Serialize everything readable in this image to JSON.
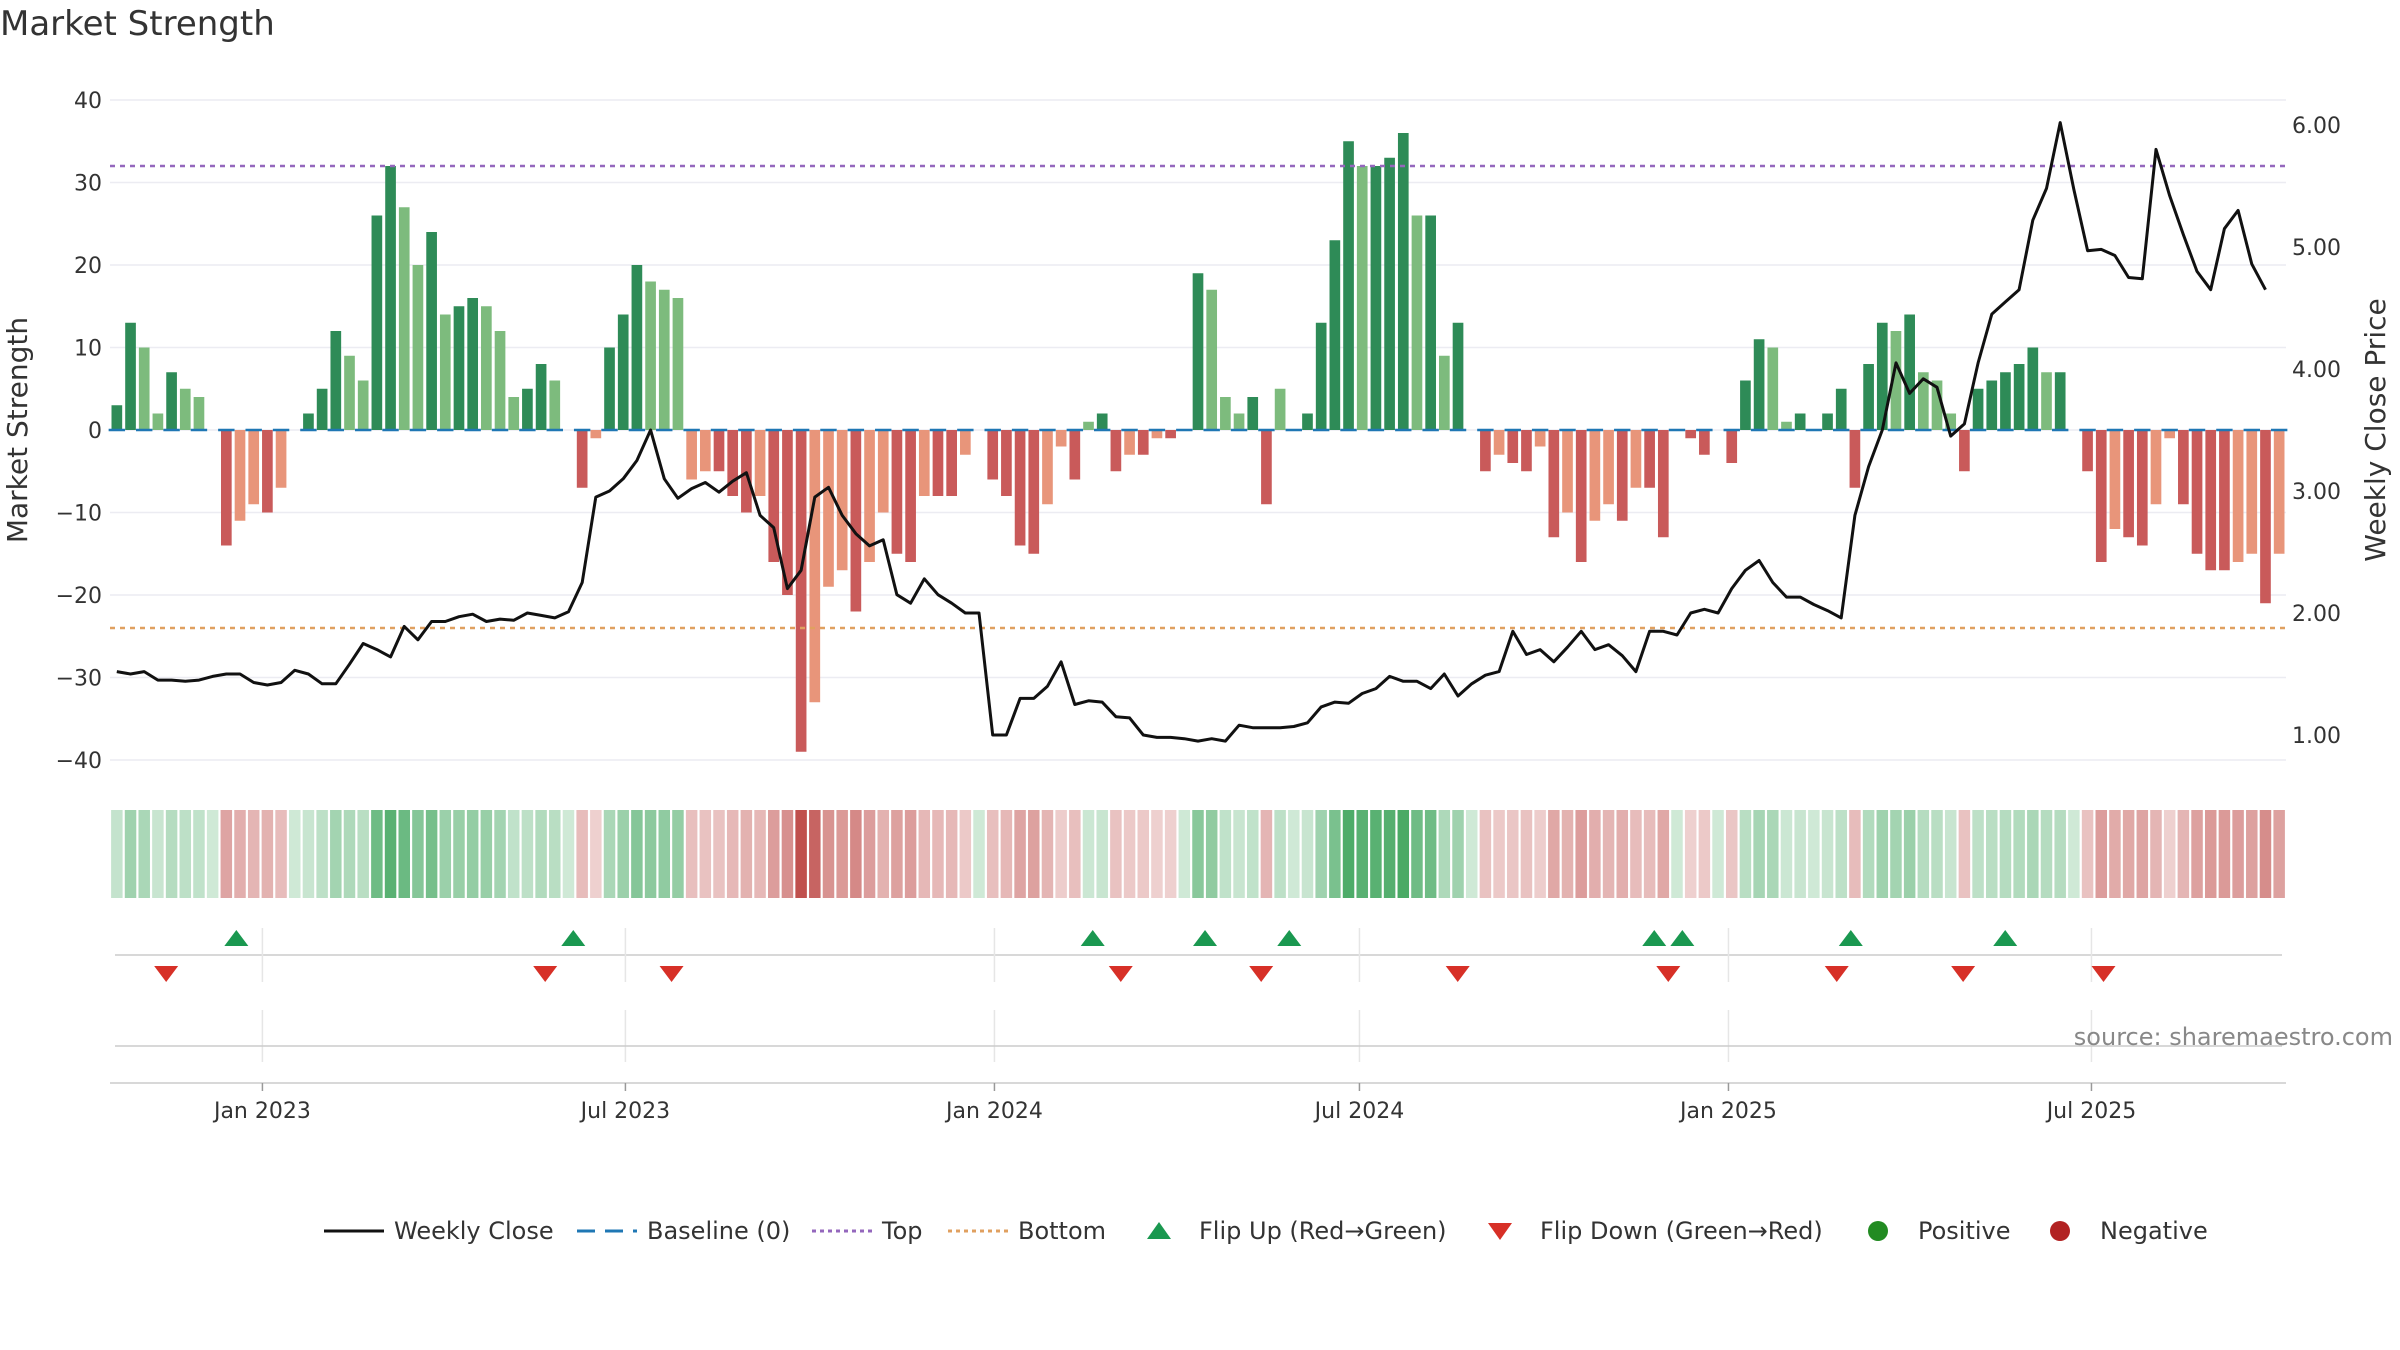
{
  "title": "Market Strength",
  "source": "source: sharemaestro.com",
  "colors": {
    "pos_dark": "#2e8b57",
    "pos_light": "#7dbb7d",
    "neg_dark": "#c95a5a",
    "neg_light": "#e8957a",
    "close": "#111111",
    "baseline": "#1f77b4",
    "top": "#9467bd",
    "bottom": "#e0a060",
    "flip_up": "#1a9850",
    "flip_down": "#d73027",
    "positive": "#228b22",
    "negative": "#b22222"
  },
  "chart_data": {
    "type": "bar",
    "title": "Market Strength",
    "ylabel": "Market Strength",
    "ylabel_right": "Weekly Close Price",
    "ylim": [
      -40,
      40
    ],
    "ylim_right": [
      1.0,
      6.0
    ],
    "yticks": [
      40,
      30,
      20,
      10,
      0,
      -10,
      -20,
      -30,
      -40
    ],
    "yticks_right": [
      "6.00",
      "5.00",
      "4.00",
      "3.00",
      "2.00",
      "1.00"
    ],
    "x_start": "2022-10-17",
    "x_end": "2025-10-06",
    "x_tick_labels": [
      "Jan 2023",
      "Jul 2023",
      "Jan 2024",
      "Jul 2024",
      "Jan 2025",
      "Jul 2025"
    ],
    "x_tick_dates": [
      "2023-01-01",
      "2023-07-01",
      "2024-01-01",
      "2024-07-01",
      "2025-01-01",
      "2025-07-01"
    ],
    "top_line": 32,
    "bottom_line": -24,
    "grid": true,
    "legend_position": "bottom",
    "legend": [
      "Weekly Close",
      "Baseline (0)",
      "Top",
      "Bottom",
      "Flip Up (Red→Green)",
      "Flip Down (Green→Red)",
      "Positive",
      "Negative"
    ],
    "strength": [
      3,
      13,
      10,
      2,
      7,
      5,
      4,
      0,
      -14,
      -11,
      -9,
      -10,
      -7,
      0,
      2,
      5,
      12,
      9,
      6,
      26,
      32,
      27,
      20,
      24,
      14,
      15,
      16,
      15,
      12,
      4,
      5,
      8,
      6,
      0,
      -7,
      -1,
      10,
      14,
      20,
      18,
      17,
      16,
      -6,
      -5,
      -5,
      -8,
      -10,
      -8,
      -16,
      -20,
      -39,
      -33,
      -19,
      -17,
      -22,
      -16,
      -10,
      -15,
      -16,
      -8,
      -8,
      -8,
      -3,
      0,
      -6,
      -8,
      -14,
      -15,
      -9,
      -2,
      -6,
      1,
      2,
      -5,
      -3,
      -3,
      -1,
      -1,
      0,
      19,
      17,
      4,
      2,
      4,
      -9,
      5,
      0,
      2,
      13,
      23,
      35,
      32,
      32,
      33,
      36,
      26,
      26,
      9,
      13,
      0,
      -5,
      -3,
      -4,
      -5,
      -2,
      -13,
      -10,
      -16,
      -11,
      -9,
      -11,
      -7,
      -7,
      -13,
      0,
      -1,
      -3,
      0,
      -4,
      6,
      11,
      10,
      1,
      2,
      0,
      2,
      5,
      -7,
      8,
      13,
      12,
      14,
      7,
      6,
      2,
      -5,
      5,
      6,
      7,
      8,
      10,
      7,
      7,
      0,
      -5,
      -16,
      -12,
      -13,
      -14,
      -9,
      -1,
      -9,
      -15,
      -17,
      -17,
      -16,
      -15,
      -21,
      -15
    ],
    "close": [
      1.52,
      1.5,
      1.52,
      1.45,
      1.45,
      1.44,
      1.45,
      1.48,
      1.5,
      1.5,
      1.43,
      1.41,
      1.43,
      1.53,
      1.5,
      1.42,
      1.42,
      1.58,
      1.75,
      1.7,
      1.64,
      1.89,
      1.78,
      1.93,
      1.93,
      1.97,
      1.99,
      1.93,
      1.95,
      1.94,
      2.0,
      1.98,
      1.96,
      2.01,
      2.25,
      2.95,
      3.0,
      3.1,
      3.25,
      3.5,
      3.1,
      2.94,
      3.02,
      3.07,
      2.99,
      3.08,
      3.15,
      2.8,
      2.7,
      2.2,
      2.35,
      2.95,
      3.03,
      2.8,
      2.65,
      2.55,
      2.6,
      2.15,
      2.08,
      2.28,
      2.15,
      2.08,
      2.0,
      2.0,
      1.0,
      1.0,
      1.3,
      1.3,
      1.4,
      1.6,
      1.25,
      1.28,
      1.27,
      1.15,
      1.14,
      1.0,
      0.98,
      0.98,
      0.97,
      0.95,
      0.97,
      0.95,
      1.08,
      1.06,
      1.06,
      1.06,
      1.07,
      1.1,
      1.23,
      1.27,
      1.26,
      1.34,
      1.38,
      1.48,
      1.44,
      1.44,
      1.38,
      1.5,
      1.32,
      1.42,
      1.49,
      1.52,
      1.85,
      1.66,
      1.7,
      1.6,
      1.72,
      1.85,
      1.7,
      1.74,
      1.65,
      1.52,
      1.85,
      1.85,
      1.82,
      2.0,
      2.03,
      2.0,
      2.2,
      2.35,
      2.43,
      2.25,
      2.13,
      2.13,
      2.07,
      2.02,
      1.96,
      2.8,
      3.2,
      3.5,
      4.05,
      3.8,
      3.92,
      3.85,
      3.45,
      3.55,
      4.05,
      4.45,
      4.55,
      4.65,
      5.22,
      5.48,
      6.02,
      5.47,
      4.97,
      4.98,
      4.93,
      4.75,
      4.74,
      5.8,
      5.42,
      5.1,
      4.8,
      4.65,
      5.15,
      5.3,
      4.86,
      4.65
    ]
  },
  "flips": {
    "up_dates": [
      "2022-12-19",
      "2023-06-05",
      "2024-02-19",
      "2024-04-15",
      "2024-05-27",
      "2024-11-25",
      "2024-12-09",
      "2025-03-03",
      "2025-05-19"
    ],
    "down_dates": [
      "2022-11-14",
      "2023-05-22",
      "2023-07-24",
      "2024-03-04",
      "2024-05-13",
      "2024-08-19",
      "2024-12-02",
      "2025-02-24",
      "2025-04-28",
      "2025-07-07"
    ]
  },
  "legend_items": {
    "close": "Weekly Close",
    "baseline": "Baseline (0)",
    "top": "Top",
    "bottom": "Bottom",
    "flip_up": "Flip Up (Red→Green)",
    "flip_down": "Flip Down (Green→Red)",
    "positive": "Positive",
    "negative": "Negative"
  }
}
